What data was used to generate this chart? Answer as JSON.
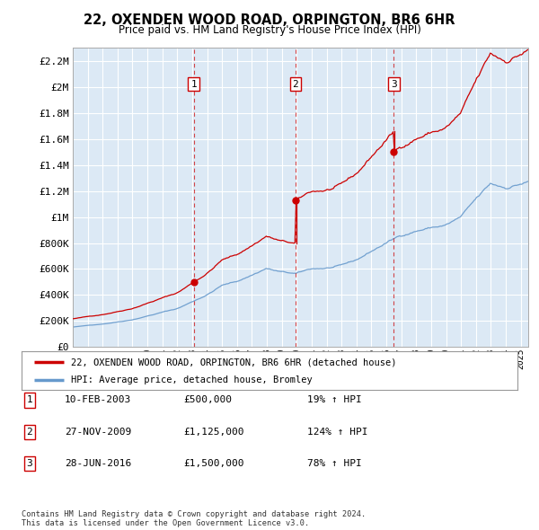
{
  "title": "22, OXENDEN WOOD ROAD, ORPINGTON, BR6 6HR",
  "subtitle": "Price paid vs. HM Land Registry's House Price Index (HPI)",
  "background_color": "#dce9f5",
  "plot_bg_color": "#dce9f5",
  "red_line_color": "#cc0000",
  "blue_line_color": "#6699cc",
  "ylim": [
    0,
    2300000
  ],
  "yticks": [
    0,
    200000,
    400000,
    600000,
    800000,
    1000000,
    1200000,
    1400000,
    1600000,
    1800000,
    2000000,
    2200000
  ],
  "ytick_labels": [
    "£0",
    "£200K",
    "£400K",
    "£600K",
    "£800K",
    "£1M",
    "£1.2M",
    "£1.4M",
    "£1.6M",
    "£1.8M",
    "£2M",
    "£2.2M"
  ],
  "xmin": 1995.0,
  "xmax": 2025.5,
  "sales": [
    {
      "num": 1,
      "year": 2003.1,
      "price": 500000
    },
    {
      "num": 2,
      "year": 2009.9,
      "price": 1125000
    },
    {
      "num": 3,
      "year": 2016.5,
      "price": 1500000
    }
  ],
  "legend_line1": "22, OXENDEN WOOD ROAD, ORPINGTON, BR6 6HR (detached house)",
  "legend_line2": "HPI: Average price, detached house, Bromley",
  "table_entries": [
    {
      "num": 1,
      "date": "10-FEB-2003",
      "price": "£500,000",
      "hpi": "19% ↑ HPI"
    },
    {
      "num": 2,
      "date": "27-NOV-2009",
      "price": "£1,125,000",
      "hpi": "124% ↑ HPI"
    },
    {
      "num": 3,
      "date": "28-JUN-2016",
      "price": "£1,500,000",
      "hpi": "78% ↑ HPI"
    }
  ],
  "footer": "Contains HM Land Registry data © Crown copyright and database right 2024.\nThis data is licensed under the Open Government Licence v3.0."
}
